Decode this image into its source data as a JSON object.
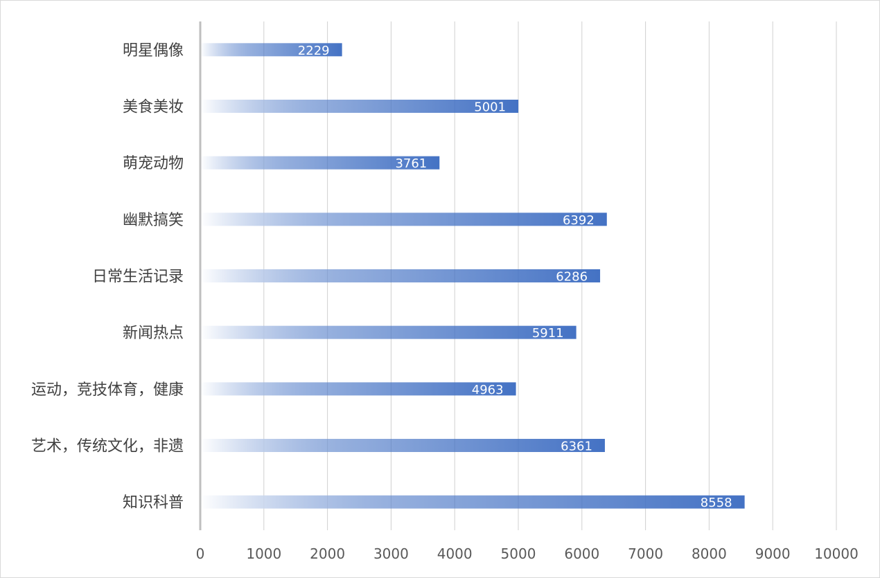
{
  "chart_data": {
    "type": "bar",
    "orientation": "horizontal",
    "categories": [
      "明星偶像",
      "美食美妆",
      "萌宠动物",
      "幽默搞笑",
      "日常生活记录",
      "新闻热点",
      "运动，竞技体育，健康",
      "艺术，传统文化，非遗",
      "知识科普"
    ],
    "values": [
      2229,
      5001,
      3761,
      6392,
      6286,
      5911,
      4963,
      6361,
      8558
    ],
    "data_labels": [
      "2229",
      "5001",
      "3761",
      "6392",
      "6286",
      "5911",
      "4963",
      "6361",
      "8558"
    ],
    "xlim": [
      0,
      10000
    ],
    "xticks": [
      0,
      1000,
      2000,
      3000,
      4000,
      5000,
      6000,
      7000,
      8000,
      9000,
      10000
    ],
    "xtick_labels": [
      "0",
      "1000",
      "2000",
      "3000",
      "4000",
      "5000",
      "6000",
      "7000",
      "8000",
      "9000",
      "10000"
    ],
    "grid": "vertical",
    "legend": "none",
    "title": "",
    "xlabel": "",
    "ylabel": "",
    "colors": {
      "bar_start": "#ffffff",
      "bar_end": "#4472c4",
      "gridline": "#d0d0d0",
      "axis": "#bfbfbf",
      "category_text": "#404040",
      "tick_text": "#595959",
      "data_label_text": "#ffffff"
    }
  }
}
